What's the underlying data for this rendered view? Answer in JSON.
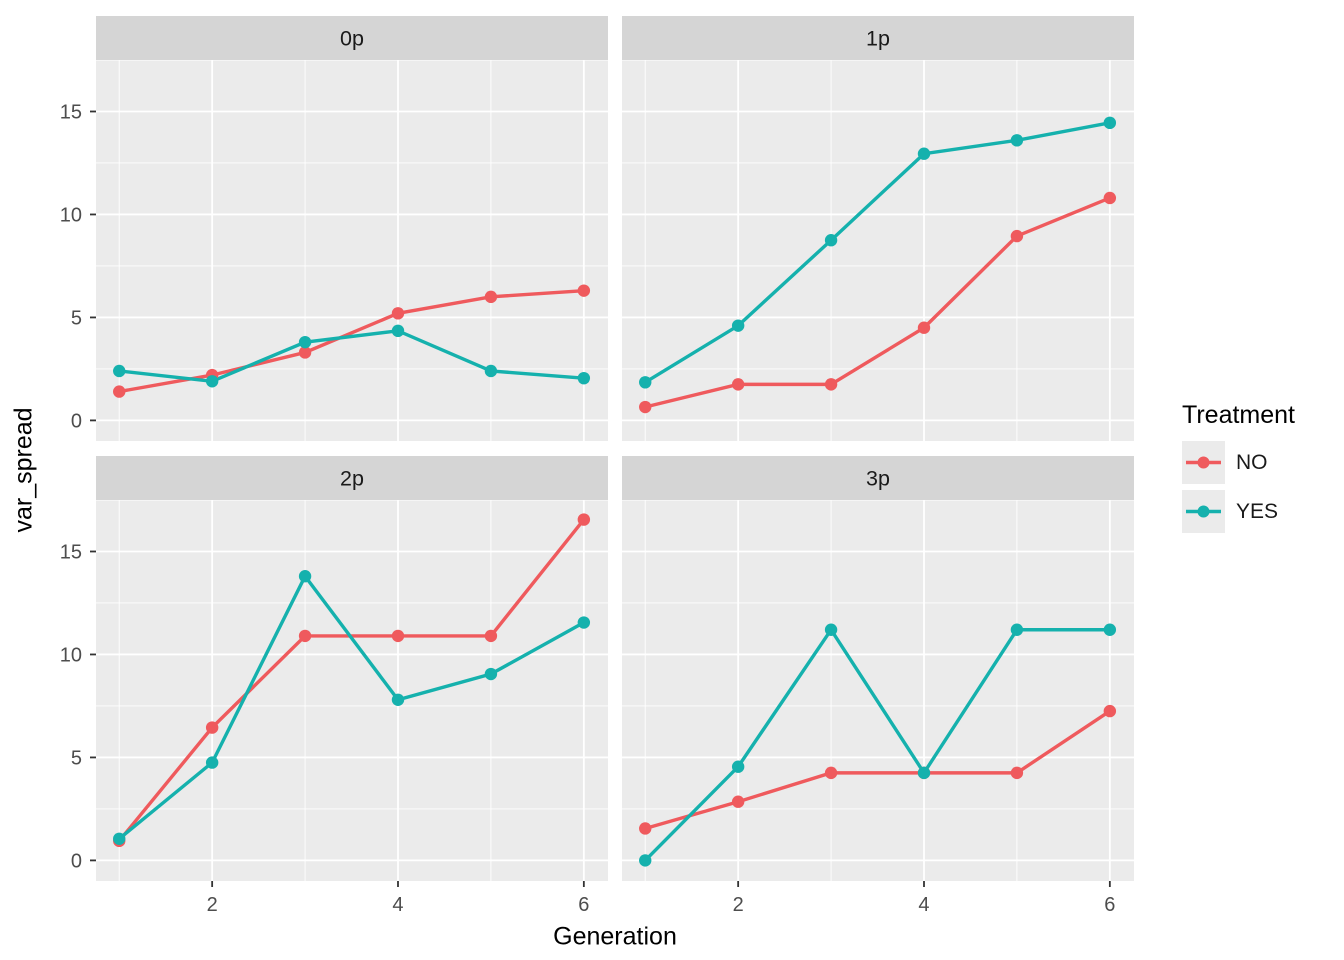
{
  "chart_data": {
    "type": "line",
    "title": "",
    "xlabel": "Generation",
    "ylabel": "var_spread",
    "x": [
      1,
      2,
      3,
      4,
      5,
      6
    ],
    "x_ticks": [
      2,
      4,
      6
    ],
    "x_minor": [
      1,
      3,
      5
    ],
    "y_ticks": [
      0,
      5,
      10,
      15
    ],
    "y_minor": [
      2.5,
      7.5,
      12.5,
      17.5
    ],
    "xlim": [
      0.75,
      6.26
    ],
    "ylim": [
      -1.0,
      17.5
    ],
    "grid": true,
    "facet_variable_values": [
      "0p",
      "1p",
      "2p",
      "3p"
    ],
    "facets": [
      {
        "label": "0p",
        "series": [
          {
            "name": "NO",
            "values": [
              1.4,
              2.2,
              3.3,
              5.2,
              6.0,
              6.3
            ]
          },
          {
            "name": "YES",
            "values": [
              2.4,
              1.9,
              3.8,
              4.35,
              2.4,
              2.05
            ]
          }
        ]
      },
      {
        "label": "1p",
        "series": [
          {
            "name": "NO",
            "values": [
              0.65,
              1.75,
              1.75,
              4.5,
              8.95,
              10.8
            ]
          },
          {
            "name": "YES",
            "values": [
              1.85,
              4.6,
              8.75,
              12.95,
              13.6,
              14.45
            ]
          }
        ]
      },
      {
        "label": "2p",
        "series": [
          {
            "name": "NO",
            "values": [
              0.95,
              6.45,
              10.9,
              10.9,
              10.9,
              16.55
            ]
          },
          {
            "name": "YES",
            "values": [
              1.05,
              4.75,
              13.8,
              7.8,
              9.05,
              11.55
            ]
          }
        ]
      },
      {
        "label": "3p",
        "series": [
          {
            "name": "NO",
            "values": [
              1.55,
              2.85,
              4.25,
              4.25,
              4.25,
              7.25
            ]
          },
          {
            "name": "YES",
            "values": [
              0.0,
              4.55,
              11.2,
              4.25,
              11.2,
              11.2
            ]
          }
        ]
      }
    ],
    "legend": {
      "title": "Treatment",
      "position": "right",
      "entries": [
        {
          "label": "NO",
          "color": "#EF5A5D"
        },
        {
          "label": "YES",
          "color": "#15B1AD"
        }
      ]
    },
    "colors": {
      "NO": "#EF5A5D",
      "YES": "#15B1AD"
    },
    "theme": {
      "panel_bg": "#EBEBEB",
      "strip_bg": "#D5D5D5",
      "grid_color": "#FFFFFF",
      "tick_label_color": "#4D4D4D",
      "strip_text_color": "#1A1A1A",
      "axis_title_color": "#000000",
      "tick_mark_color": "#333333"
    }
  }
}
